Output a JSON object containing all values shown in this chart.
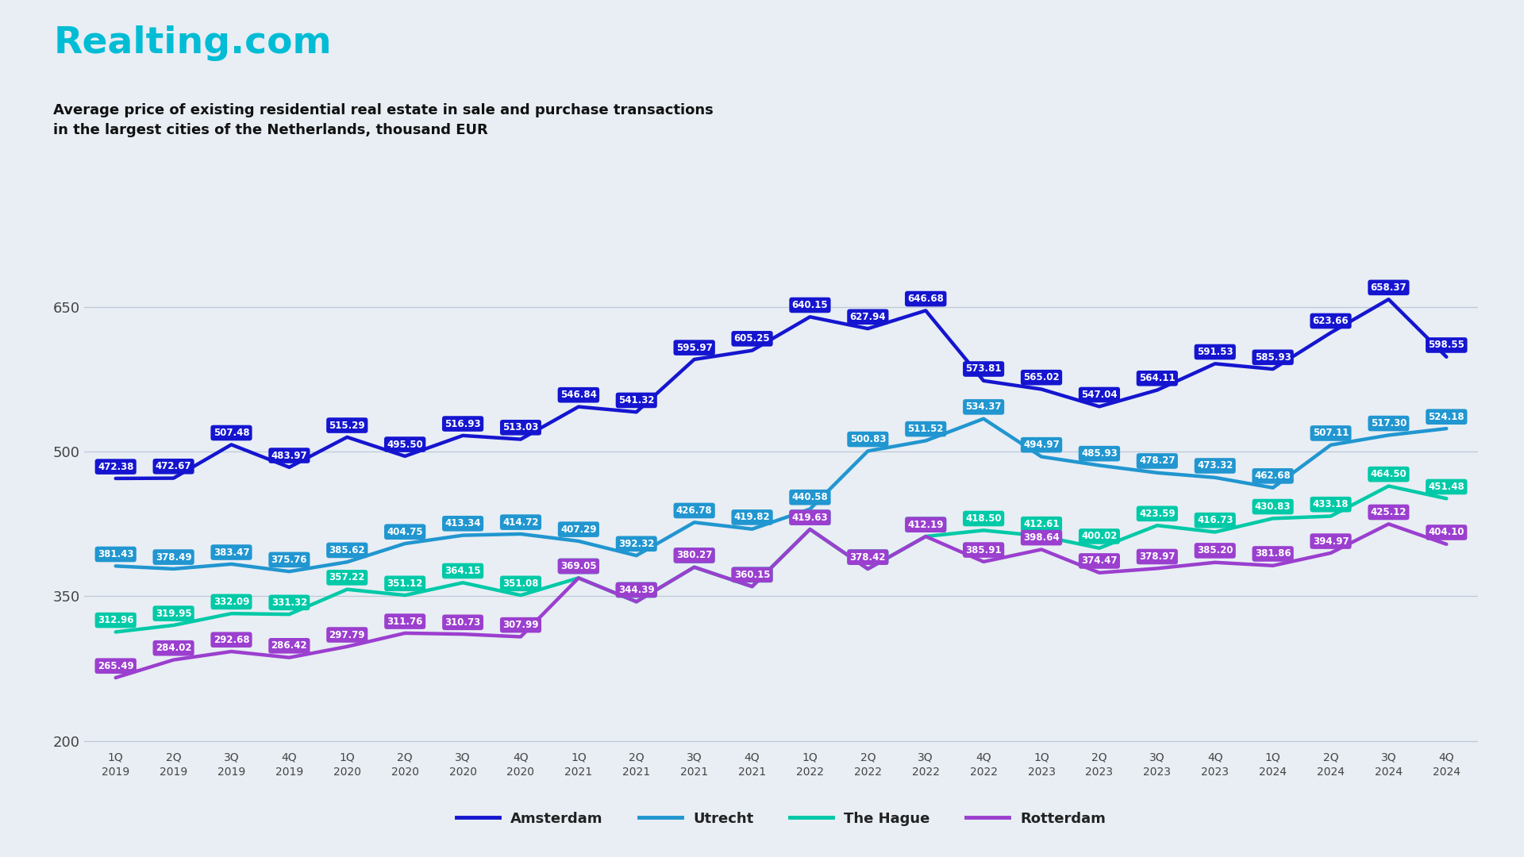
{
  "title_logo": "Realting.com",
  "title_logo_color": "#00BCD4",
  "subtitle_line1": "Average price of existing residential real estate in sale and purchase transactions",
  "subtitle_line2": "in the largest cities of the Netherlands, thousand EUR",
  "background_color": "#E8EEF4",
  "x_labels": [
    "1Q\n2019",
    "2Q\n2019",
    "3Q\n2019",
    "4Q\n2019",
    "1Q\n2020",
    "2Q\n2020",
    "3Q\n2020",
    "4Q\n2020",
    "1Q\n2021",
    "2Q\n2021",
    "3Q\n2021",
    "4Q\n2021",
    "1Q\n2022",
    "2Q\n2022",
    "3Q\n2022",
    "4Q\n2022",
    "1Q\n2023",
    "2Q\n2023",
    "3Q\n2023",
    "4Q\n2023",
    "1Q\n2024",
    "2Q\n2024",
    "3Q\n2024",
    "4Q\n2024"
  ],
  "amsterdam": [
    472.38,
    472.67,
    507.48,
    483.97,
    515.29,
    495.5,
    516.93,
    513.03,
    546.84,
    541.32,
    595.97,
    605.25,
    640.15,
    627.94,
    646.68,
    573.81,
    565.02,
    547.04,
    564.11,
    591.53,
    585.93,
    623.66,
    658.37,
    598.55
  ],
  "utrecht": [
    381.43,
    378.49,
    383.47,
    375.76,
    385.62,
    404.75,
    413.34,
    414.72,
    407.29,
    392.32,
    426.78,
    419.82,
    440.58,
    500.83,
    511.52,
    534.37,
    494.97,
    485.93,
    478.27,
    473.32,
    462.68,
    507.11,
    517.3,
    524.18
  ],
  "thehague": [
    312.96,
    319.95,
    332.09,
    331.32,
    357.22,
    351.12,
    364.15,
    351.08,
    369.05,
    344.39,
    380.27,
    360.15,
    419.63,
    378.42,
    412.19,
    418.5,
    412.61,
    400.02,
    423.59,
    416.73,
    430.83,
    433.18,
    464.5,
    451.48
  ],
  "rotterdam": [
    265.49,
    284.02,
    292.68,
    286.42,
    297.79,
    311.76,
    310.73,
    307.99,
    369.05,
    344.39,
    380.27,
    360.15,
    419.63,
    378.42,
    412.19,
    385.91,
    398.64,
    374.47,
    378.97,
    385.2,
    381.86,
    394.97,
    425.12,
    404.1
  ],
  "amsterdam_color": "#1515d0",
  "utrecht_color": "#2196d0",
  "thehague_color": "#00c9a7",
  "rotterdam_color": "#9b3fcf",
  "yticks": [
    200,
    350,
    500,
    650
  ],
  "ylim_min": 195,
  "ylim_max": 720
}
